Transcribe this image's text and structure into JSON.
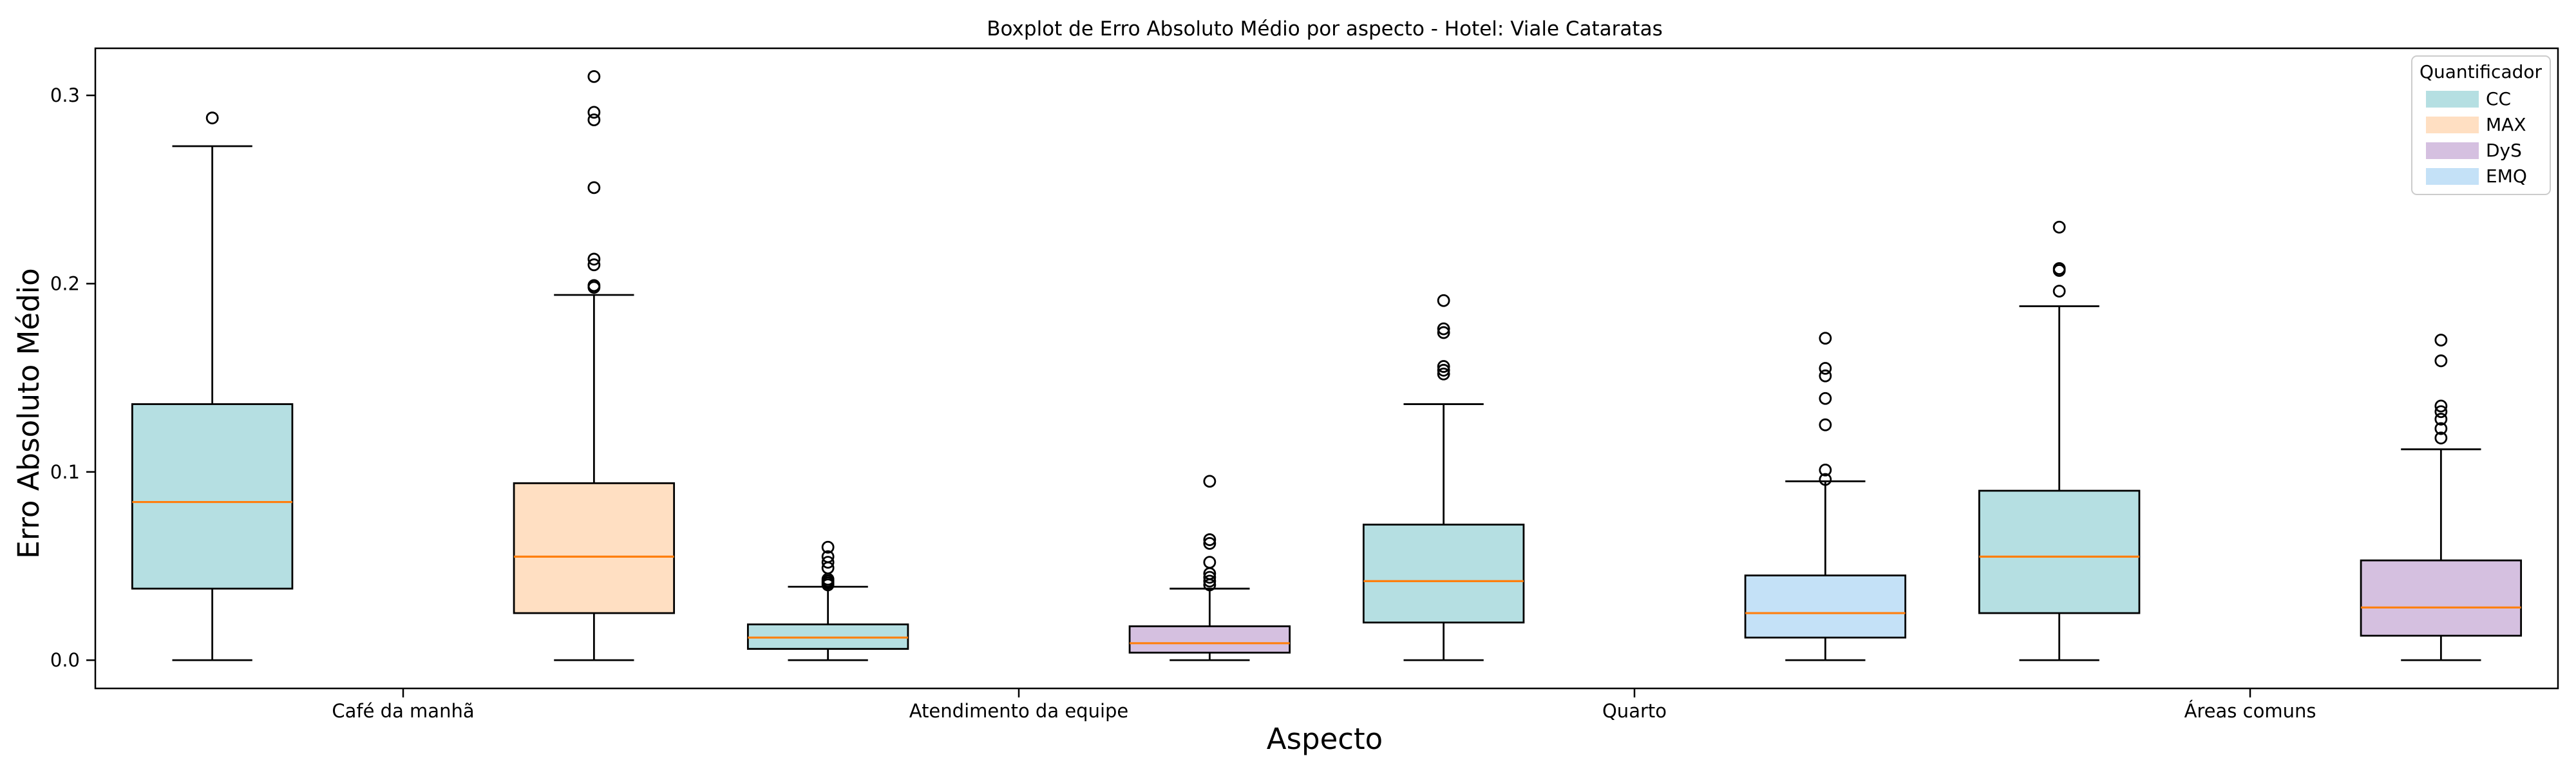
{
  "chart_data": {
    "type": "boxplot",
    "title": "Boxplot de Erro Absoluto Médio por aspecto - Hotel: Viale Cataratas",
    "xlabel": "Aspecto",
    "ylabel": "Erro Absoluto Médio",
    "ylim": [
      -0.015,
      0.325
    ],
    "yticks": [
      0.0,
      0.1,
      0.2,
      0.3
    ],
    "ytick_labels": [
      "0.0",
      "0.1",
      "0.2",
      "0.3"
    ],
    "categories": [
      "Café da manhã",
      "Atendimento da equipe",
      "Quarto",
      "Áreas comuns"
    ],
    "legend": {
      "title": "Quantificador",
      "position": "top-right",
      "entries": [
        {
          "name": "CC",
          "color": "#b5dfe2"
        },
        {
          "name": "MAX",
          "color": "#ffdfc2"
        },
        {
          "name": "DyS",
          "color": "#d5c0e0"
        },
        {
          "name": "EMQ",
          "color": "#c4e1f7"
        }
      ]
    },
    "boxes": [
      {
        "category": "Café da manhã",
        "quantifier": "CC",
        "color": "#b5dfe2",
        "min": 0.0,
        "q1": 0.038,
        "median": 0.084,
        "q3": 0.136,
        "max": 0.273,
        "fliers": [
          0.288
        ]
      },
      {
        "category": "Café da manhã",
        "quantifier": "MAX",
        "color": "#ffdfc2",
        "min": 0.0,
        "q1": 0.025,
        "median": 0.055,
        "q3": 0.094,
        "max": 0.194,
        "fliers": [
          0.198,
          0.199,
          0.21,
          0.213,
          0.251,
          0.287,
          0.291,
          0.31
        ]
      },
      {
        "category": "Atendimento da equipe",
        "quantifier": "CC",
        "color": "#b5dfe2",
        "min": 0.0,
        "q1": 0.006,
        "median": 0.012,
        "q3": 0.019,
        "max": 0.039,
        "fliers": [
          0.04,
          0.041,
          0.042,
          0.043,
          0.049,
          0.052,
          0.055,
          0.06
        ]
      },
      {
        "category": "Atendimento da equipe",
        "quantifier": "DyS",
        "color": "#d5c0e0",
        "min": 0.0,
        "q1": 0.004,
        "median": 0.009,
        "q3": 0.018,
        "max": 0.038,
        "fliers": [
          0.04,
          0.042,
          0.044,
          0.046,
          0.052,
          0.062,
          0.064,
          0.095
        ]
      },
      {
        "category": "Quarto",
        "quantifier": "CC",
        "color": "#b5dfe2",
        "min": 0.0,
        "q1": 0.02,
        "median": 0.042,
        "q3": 0.072,
        "max": 0.136,
        "fliers": [
          0.152,
          0.154,
          0.156,
          0.174,
          0.176,
          0.191
        ]
      },
      {
        "category": "Quarto",
        "quantifier": "EMQ",
        "color": "#c4e1f7",
        "min": 0.0,
        "q1": 0.012,
        "median": 0.025,
        "q3": 0.045,
        "max": 0.095,
        "fliers": [
          0.096,
          0.101,
          0.125,
          0.139,
          0.151,
          0.155,
          0.171
        ]
      },
      {
        "category": "Áreas comuns",
        "quantifier": "CC",
        "color": "#b5dfe2",
        "min": 0.0,
        "q1": 0.025,
        "median": 0.055,
        "q3": 0.09,
        "max": 0.188,
        "fliers": [
          0.196,
          0.207,
          0.208,
          0.23
        ]
      },
      {
        "category": "Áreas comuns",
        "quantifier": "DyS",
        "color": "#d5c0e0",
        "min": 0.0,
        "q1": 0.013,
        "median": 0.028,
        "q3": 0.053,
        "max": 0.112,
        "fliers": [
          0.118,
          0.123,
          0.128,
          0.132,
          0.135,
          0.159,
          0.17
        ]
      }
    ]
  }
}
